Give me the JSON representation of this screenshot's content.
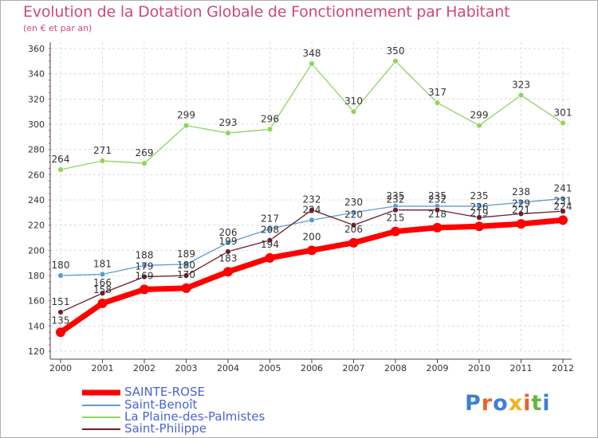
{
  "header": {
    "title": "Evolution de la Dotation Globale de Fonctionnement par Habitant",
    "subtitle": "(en € et par an)"
  },
  "chart_data": {
    "type": "line",
    "title": "Evolution de la Dotation Globale de Fonctionnement par Habitant",
    "subtitle": "(en € et par an)",
    "xlabel": "",
    "ylabel": "",
    "ylim": [
      120,
      360
    ],
    "yticks": [
      120,
      140,
      160,
      180,
      200,
      220,
      240,
      260,
      280,
      300,
      320,
      340,
      360
    ],
    "x": [
      2000,
      2001,
      2002,
      2003,
      2004,
      2005,
      2006,
      2007,
      2008,
      2009,
      2010,
      2011,
      2012
    ],
    "grid": true,
    "legend_position": "bottom-left",
    "series": [
      {
        "name": "SAINTE-ROSE",
        "color": "#ff0000",
        "values": [
          135,
          158,
          169,
          170,
          183,
          194,
          200,
          206,
          215,
          218,
          219,
          221,
          224
        ],
        "labels": [
          "135",
          "158",
          "169",
          "170",
          "183",
          "194",
          "200",
          "206",
          "215",
          "218",
          "219",
          "221",
          "224"
        ]
      },
      {
        "name": "Saint-Benoît",
        "color": "#5b9bd5",
        "values": [
          180,
          181,
          188,
          189,
          206,
          217,
          224,
          230,
          235,
          235,
          235,
          238,
          241
        ],
        "labels": [
          "180",
          "181",
          "188",
          "189",
          "206",
          "217",
          "224",
          "230",
          "235",
          "235",
          "235",
          "238",
          "241"
        ]
      },
      {
        "name": "La Plaine-des-Palmistes",
        "color": "#8fd45e",
        "values": [
          264,
          271,
          269,
          299,
          293,
          296,
          348,
          310,
          350,
          317,
          299,
          323,
          301
        ],
        "labels": [
          "264",
          "271",
          "269",
          "299",
          "293",
          "296",
          "348",
          "310",
          "350",
          "317",
          "299",
          "323",
          "301"
        ]
      },
      {
        "name": "Saint-Philippe",
        "color": "#6b1f2a",
        "values": [
          151,
          166,
          179,
          180,
          199,
          208,
          232,
          220,
          232,
          232,
          226,
          229,
          231
        ],
        "labels": [
          "151",
          "166",
          "179",
          "180",
          "199",
          "208",
          "232",
          "220",
          "232",
          "232",
          "226",
          "229",
          "231"
        ]
      }
    ]
  },
  "branding": {
    "logo_text": "Proxiti",
    "logo_colors": [
      "#3d7fd6",
      "#e8632b",
      "#3d7fd6",
      "#f2b21d",
      "#e8632b",
      "#5fb83a",
      "#3d7fd6"
    ]
  }
}
